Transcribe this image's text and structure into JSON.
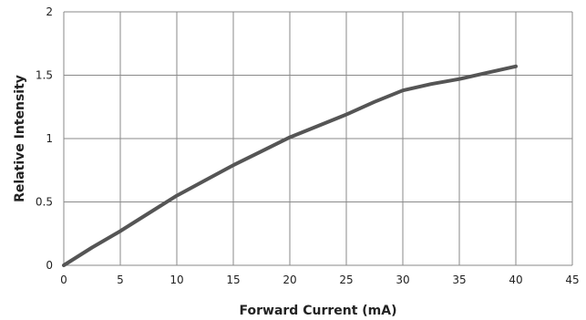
{
  "chart_data": {
    "type": "line",
    "xlabel": "Forward Current (mA)",
    "ylabel": "Relative Intensity",
    "xlim": [
      0,
      45
    ],
    "ylim": [
      0,
      2
    ],
    "x_ticks": [
      0,
      5,
      10,
      15,
      20,
      25,
      30,
      35,
      40,
      45
    ],
    "y_ticks": [
      0,
      0.5,
      1,
      1.5,
      2
    ],
    "grid": true,
    "series_color": "#555555",
    "series": [
      {
        "x": [
          0,
          2.5,
          5,
          7.5,
          10,
          12.5,
          15,
          17.5,
          20,
          22.5,
          25,
          27.5,
          30,
          32.5,
          35,
          37.5,
          40
        ],
        "y": [
          0,
          0.14,
          0.27,
          0.41,
          0.55,
          0.67,
          0.79,
          0.9,
          1.01,
          1.1,
          1.19,
          1.29,
          1.38,
          1.43,
          1.47,
          1.52,
          1.57
        ]
      }
    ]
  }
}
